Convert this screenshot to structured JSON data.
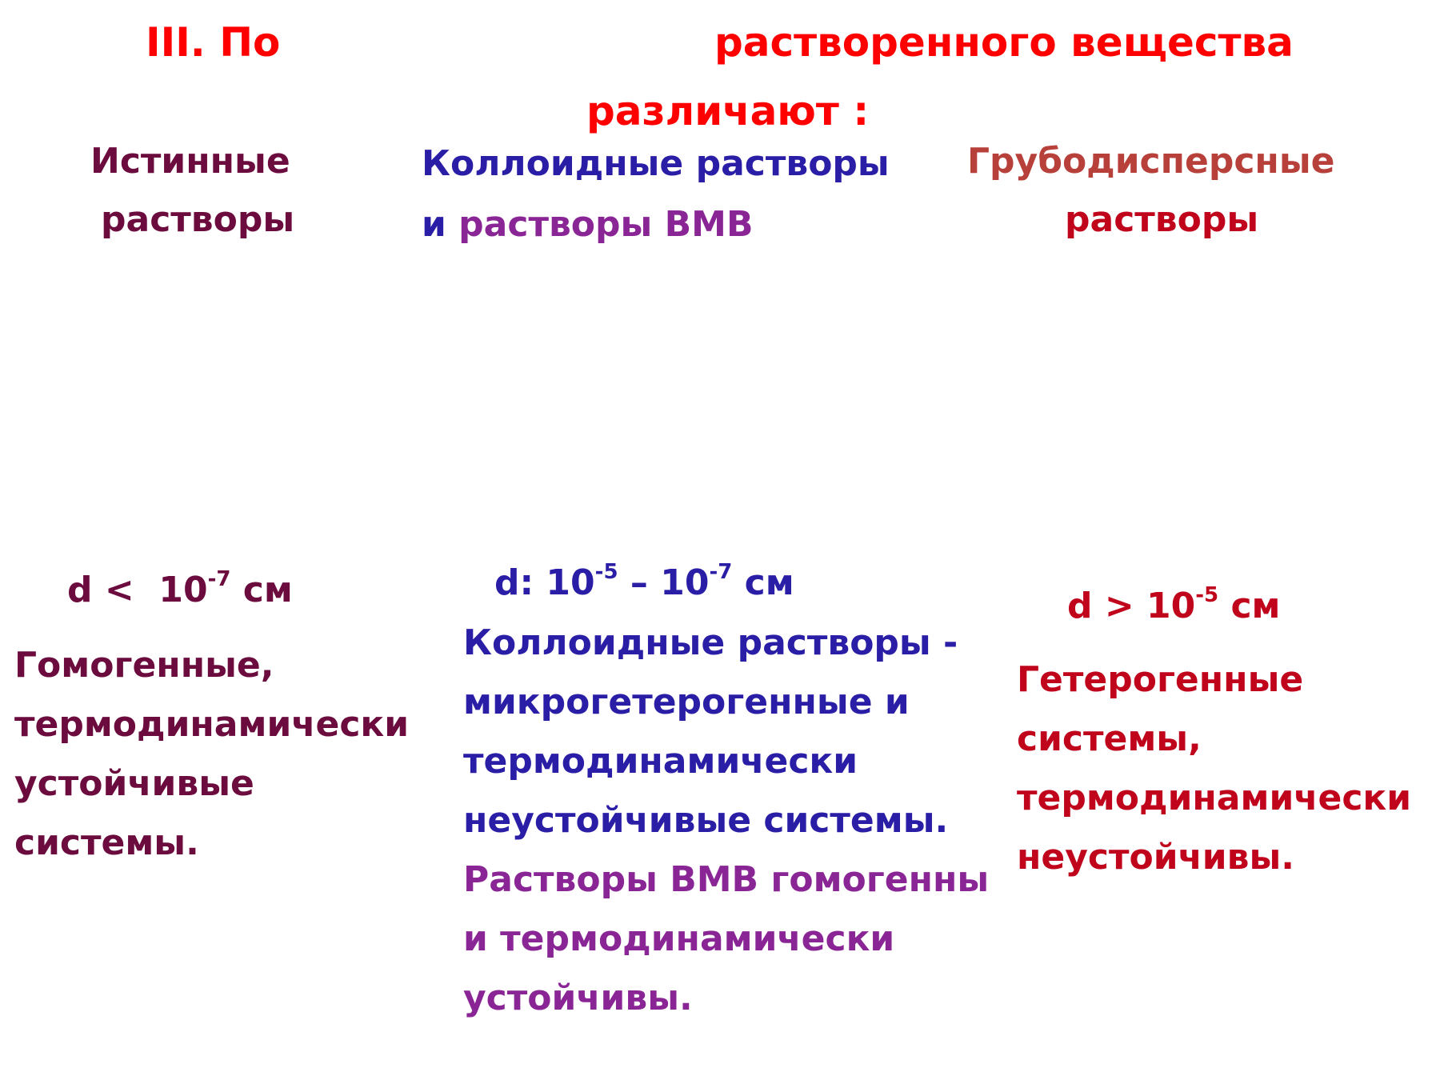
{
  "title": {
    "part1": "III. По",
    "part2": "растворенного вещества",
    "line2": "различают :"
  },
  "columns": {
    "true_solutions": {
      "heading_line1": "Истинные",
      "heading_line2": "растворы",
      "size_prefix": "d <",
      "size_base": "10",
      "size_exp": "-7",
      "size_unit": "см",
      "desc_lines": [
        "Гомогенные,",
        "термодинамически",
        "устойчивые",
        "системы."
      ]
    },
    "colloid_solutions": {
      "heading_line1": "Коллоидные растворы",
      "heading_line2_a": "и",
      "heading_line2_b": "растворы ВМВ",
      "size_prefix": "d:",
      "size_base1": "10",
      "size_exp1": "-5",
      "size_dash": "–",
      "size_base2": "10",
      "size_exp2": "-7",
      "size_unit": "см",
      "desc_blue_lines": [
        "Коллоидные растворы -",
        "микрогетерогенные  и",
        "термодинамически",
        "неустойчивые системы."
      ],
      "desc_purple_lines": [
        "Растворы ВМВ гомогенны",
        "и термодинамически",
        "устойчивы."
      ]
    },
    "coarse_solutions": {
      "heading_line1": "Грубодисперсные",
      "heading_line2": "растворы",
      "size_prefix": "d >",
      "size_base": "10",
      "size_exp": "-5",
      "size_unit": "см",
      "desc_lines": [
        "Гетерогенные",
        "системы,",
        "термодинамически",
        "неустойчивы."
      ]
    }
  },
  "colors": {
    "title": "#ff0000",
    "true_solutions": "#6b0b3e",
    "colloid": "#2b1ea6",
    "vmv": "#8a2595",
    "coarse_heading": "#b8403a",
    "coarse": "#c0041c"
  }
}
